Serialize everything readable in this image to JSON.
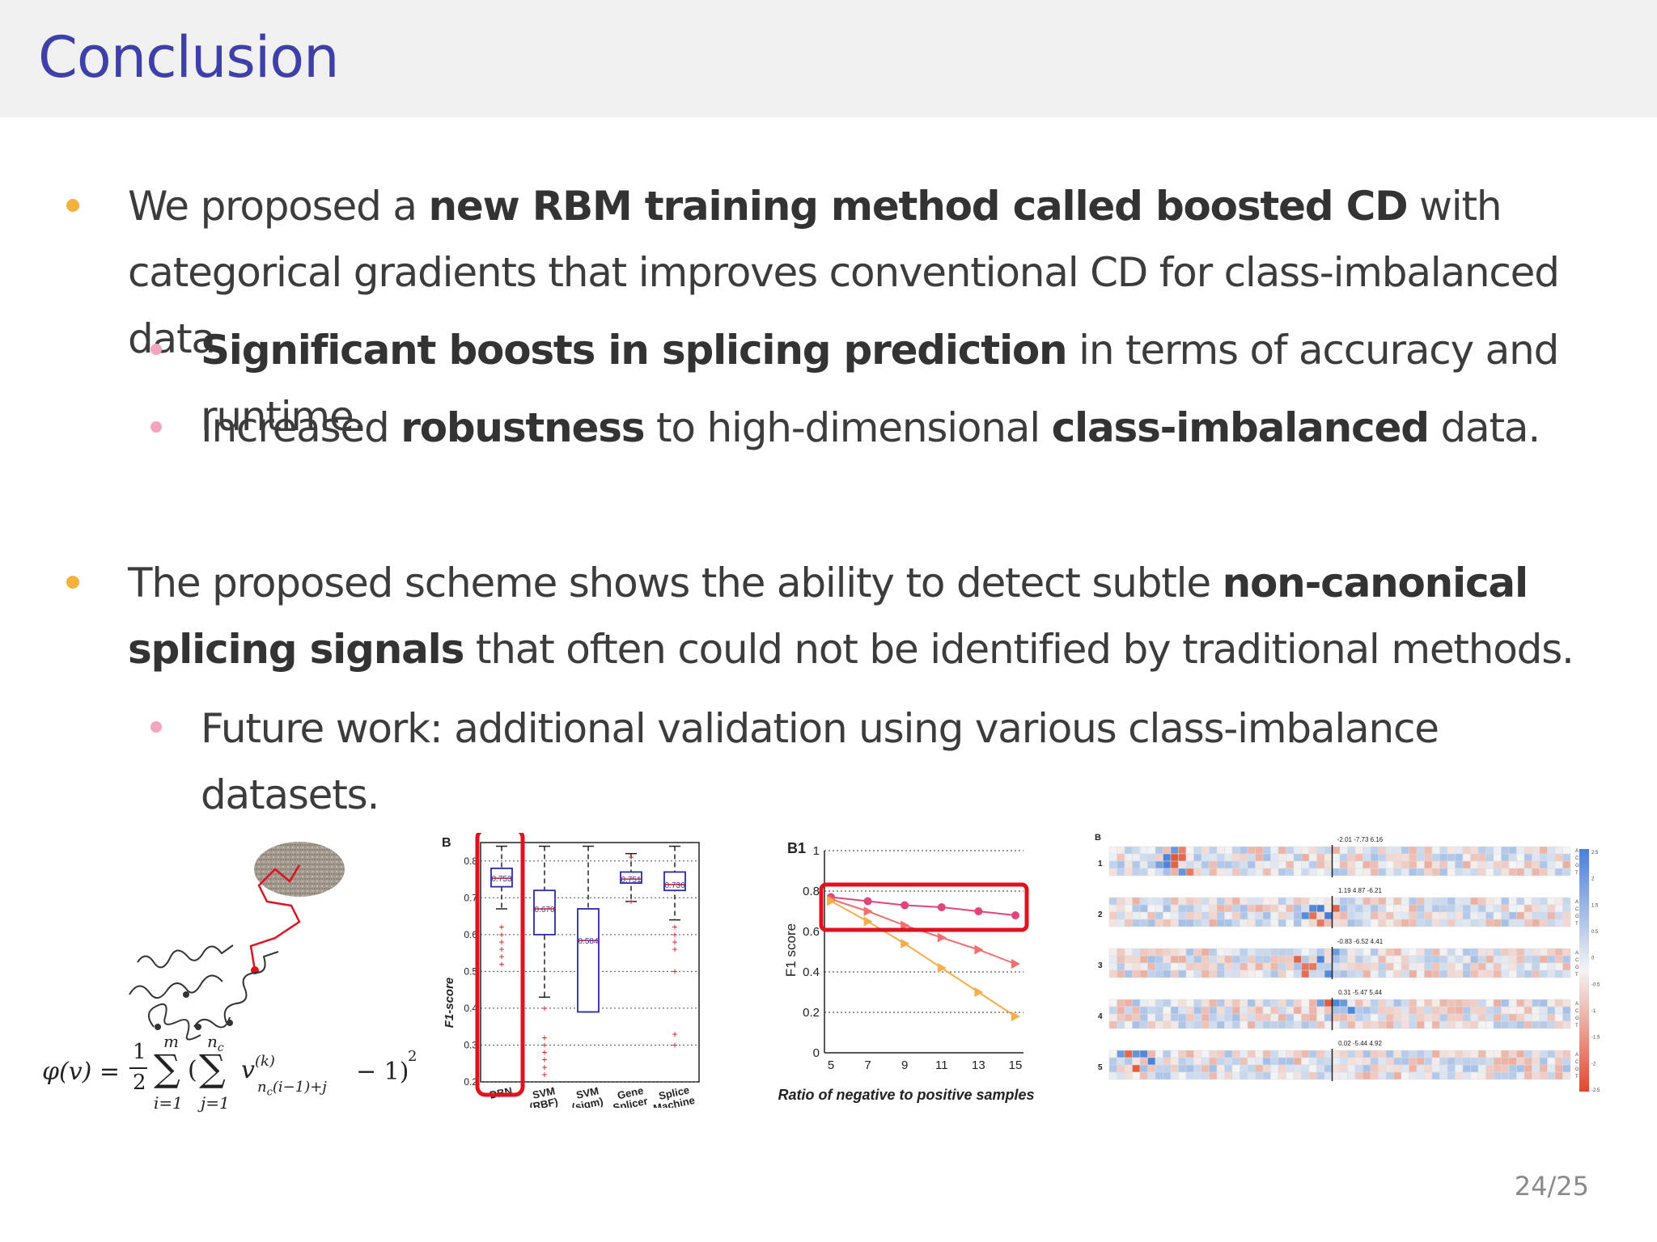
{
  "slide": {
    "title": "Conclusion",
    "page_number": "24/25"
  },
  "bullets": [
    {
      "level": 1,
      "parts": [
        {
          "text": "We proposed a ",
          "bold": false
        },
        {
          "text": "new RBM training method called boosted CD",
          "bold": true
        },
        {
          "text": " with categorical gradients that improves conventional CD for class-imbalanced data.",
          "bold": false
        }
      ]
    },
    {
      "level": 2,
      "parts": [
        {
          "text": "Significant boosts in splicing prediction",
          "bold": true
        },
        {
          "text": " in terms of accuracy and runtime.",
          "bold": false
        }
      ]
    },
    {
      "level": 2,
      "parts": [
        {
          "text": "Increased ",
          "bold": false
        },
        {
          "text": "robustness",
          "bold": true
        },
        {
          "text": " to high-dimensional ",
          "bold": false
        },
        {
          "text": "class-imbalanced",
          "bold": true
        },
        {
          "text": " data.",
          "bold": false
        }
      ]
    },
    {
      "level": 1,
      "parts": [
        {
          "text": "The proposed scheme shows the ability to detect subtle ",
          "bold": false
        },
        {
          "text": "non-canonical splicing signals",
          "bold": true
        },
        {
          "text": " that often could not be identified by traditional methods.",
          "bold": false
        }
      ]
    },
    {
      "level": 2,
      "parts": [
        {
          "text": "Future work: additional validation using various class-imbalance datasets.",
          "bold": false
        }
      ]
    }
  ],
  "formula": {
    "lhs": "φ(v) =",
    "frac_num": "1",
    "frac_den": "2",
    "sum_outer_top": "m",
    "sum_outer_bottom": "i=1",
    "sum_inner_top": "n",
    "sum_inner_top_sub": "c",
    "sum_inner_bottom": "j=1",
    "term": "v",
    "term_sup": "(k)",
    "term_sub": "n",
    "term_sub_sub": "c",
    "term_sub_rest": "(i−1)+j",
    "tail": "− 1)",
    "power": "2",
    "open": "("
  },
  "boxplot": {
    "panel_label": "B",
    "ylabel": "F1-score",
    "yticks": [
      "0.8",
      "0.7",
      "0.6",
      "0.5",
      "0.4",
      "0.3",
      "0.2"
    ],
    "categories": [
      {
        "label1": "DBN",
        "label2": ""
      },
      {
        "label1": "SVM",
        "label2": "(RBF)"
      },
      {
        "label1": "SVM",
        "label2": "(sigm)"
      },
      {
        "label1": "Gene",
        "label2": "Splicer"
      },
      {
        "label1": "Splice",
        "label2": "Machine"
      }
    ],
    "medians": [
      "0.753",
      "0.670",
      "0.584",
      "0.751",
      "0.736"
    ],
    "highlight_color": "#e0121f"
  },
  "chart_data": {
    "type": "line",
    "panel_label": "B1",
    "xlabel": "Ratio of negative to positive samples",
    "ylabel": "F1 score",
    "x": [
      5,
      7,
      9,
      11,
      13,
      15
    ],
    "xticks": [
      "5",
      "7",
      "9",
      "11",
      "13",
      "15"
    ],
    "yticks": [
      "0",
      "0.2",
      "0.4",
      "0.6",
      "0.8",
      "1"
    ],
    "ylim": [
      0,
      1
    ],
    "series": [
      {
        "values": [
          0.77,
          0.75,
          0.73,
          0.72,
          0.7,
          0.68
        ],
        "color": "#e2457a",
        "marker": "circle"
      },
      {
        "values": [
          0.76,
          0.7,
          0.63,
          0.57,
          0.51,
          0.44
        ],
        "color": "#f07070",
        "marker": "triangle"
      },
      {
        "values": [
          0.75,
          0.65,
          0.54,
          0.42,
          0.3,
          0.18
        ],
        "color": "#f5ae4b",
        "marker": "triangle"
      }
    ],
    "grid": true
  },
  "heatmap": {
    "panel_label": "B",
    "rows": [
      {
        "label": "1",
        "caption": "-2.01 -7.73 6.16"
      },
      {
        "label": "2",
        "caption": "1.19 4.87 -6.21"
      },
      {
        "label": "3",
        "caption": "-0.83 -6.52 4.41"
      },
      {
        "label": "4",
        "caption": "0.31 -5.47 5.44"
      },
      {
        "label": "5",
        "caption": "0.02 -5.44 4.92"
      }
    ],
    "bases": [
      "A",
      "C",
      "G",
      "T"
    ],
    "colorbar_ticks": [
      "2.5",
      "2",
      "1.5",
      "0.5",
      "0",
      "-0.5",
      "-1",
      "-1.5",
      "-2",
      "-2.5"
    ]
  }
}
